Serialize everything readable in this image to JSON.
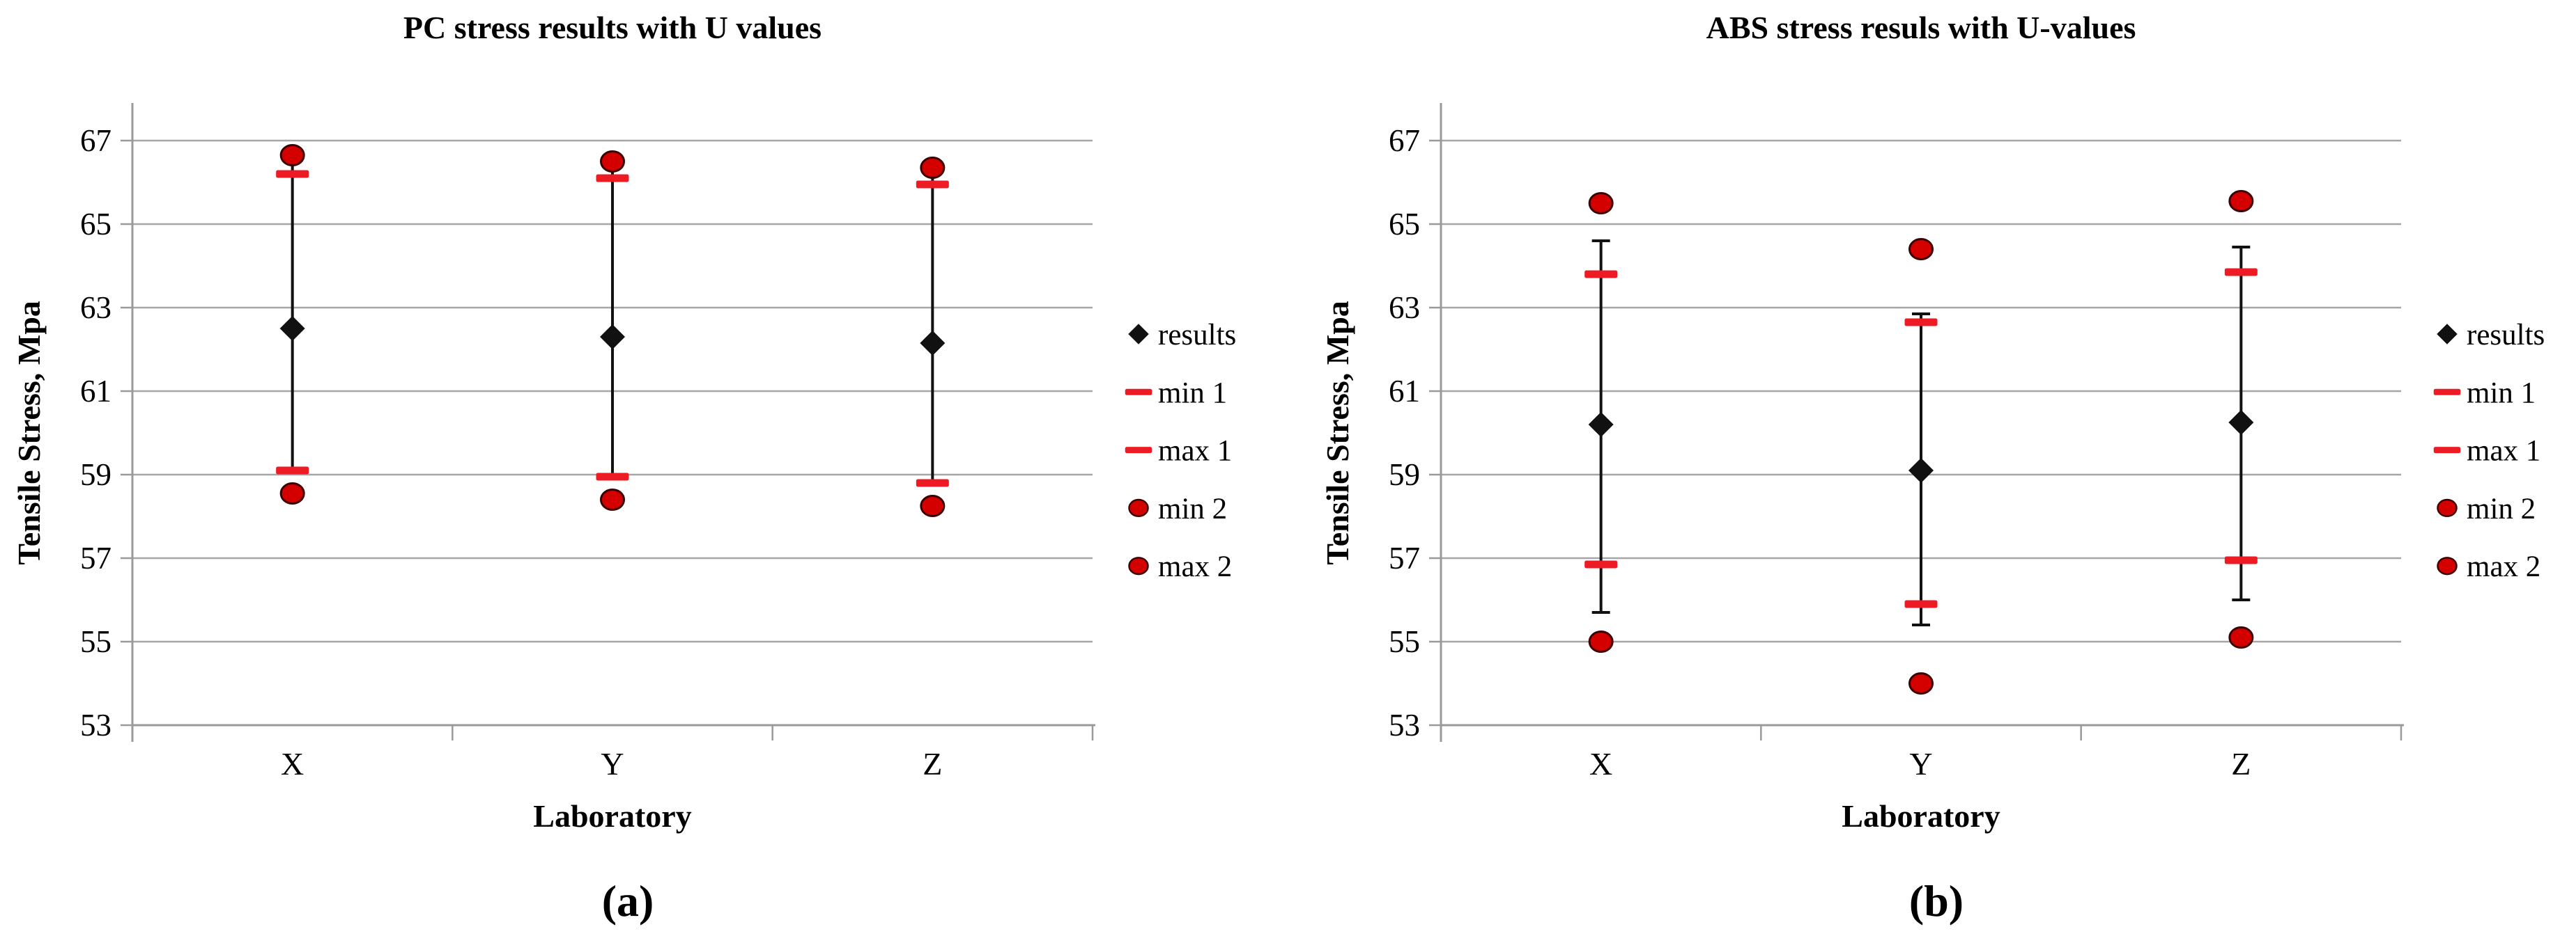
{
  "figure": {
    "background": "#ffffff",
    "palette": {
      "grid_gray": "#a6a6a6",
      "axis_gray": "#9a9a9a",
      "marker_black": "#111111",
      "dash_red": "#ed1c24",
      "circle_red": "#d40000",
      "circle_edge": "#3b0000",
      "text_black": "#000000"
    }
  },
  "chart_data": [
    {
      "type": "scatter",
      "caption": "(a)",
      "title": "PC stress results with U values",
      "xlabel": "Laboratory",
      "ylabel": "Tensile Stress, Mpa",
      "ylim": [
        53,
        68.5
      ],
      "yticks": [
        53,
        55,
        57,
        59,
        61,
        63,
        65,
        67
      ],
      "categories": [
        "X",
        "Y",
        "Z"
      ],
      "grid": true,
      "legend_position": "right",
      "legend": [
        "results",
        "min 1",
        "max 1",
        "min 2",
        "max 2"
      ],
      "series": [
        {
          "name": "results",
          "marker": "diamond",
          "color": "#111111",
          "values": [
            62.5,
            62.3,
            62.15
          ]
        },
        {
          "name": "min 1",
          "marker": "dash",
          "color": "#ed1c24",
          "values": [
            59.1,
            58.95,
            58.8
          ]
        },
        {
          "name": "max 1",
          "marker": "dash",
          "color": "#ed1c24",
          "values": [
            66.2,
            66.1,
            65.95
          ]
        },
        {
          "name": "min 2",
          "marker": "circle",
          "color": "#d40000",
          "values": [
            58.55,
            58.4,
            58.25
          ]
        },
        {
          "name": "max 2",
          "marker": "circle",
          "color": "#d40000",
          "values": [
            66.65,
            66.5,
            66.35
          ]
        }
      ],
      "error_bars": {
        "attached_to": "results",
        "caps": false,
        "low": [
          59.1,
          58.95,
          58.8
        ],
        "high": [
          66.4,
          66.3,
          66.15
        ]
      }
    },
    {
      "type": "scatter",
      "caption": "(b)",
      "title": "ABS stress resuls with U-values",
      "xlabel": "Laboratory",
      "ylabel": "Tensile Stress, Mpa",
      "ylim": [
        53,
        68.5
      ],
      "yticks": [
        53,
        55,
        57,
        59,
        61,
        63,
        65,
        67
      ],
      "categories": [
        "X",
        "Y",
        "Z"
      ],
      "grid": true,
      "legend_position": "right",
      "legend": [
        "results",
        "min 1",
        "max 1",
        "min 2",
        "max 2"
      ],
      "series": [
        {
          "name": "results",
          "marker": "diamond",
          "color": "#111111",
          "values": [
            60.2,
            59.1,
            60.25
          ]
        },
        {
          "name": "min 1",
          "marker": "dash",
          "color": "#ed1c24",
          "values": [
            56.85,
            55.9,
            56.95
          ]
        },
        {
          "name": "max 1",
          "marker": "dash",
          "color": "#ed1c24",
          "values": [
            63.8,
            62.65,
            63.85
          ]
        },
        {
          "name": "min 2",
          "marker": "circle",
          "color": "#d40000",
          "values": [
            55.0,
            54.0,
            55.1
          ]
        },
        {
          "name": "max 2",
          "marker": "circle",
          "color": "#d40000",
          "values": [
            65.5,
            64.4,
            65.55
          ]
        }
      ],
      "error_bars": {
        "attached_to": "results",
        "caps": true,
        "low": [
          55.7,
          55.4,
          56.0
        ],
        "high": [
          64.6,
          62.85,
          64.45
        ]
      }
    }
  ]
}
